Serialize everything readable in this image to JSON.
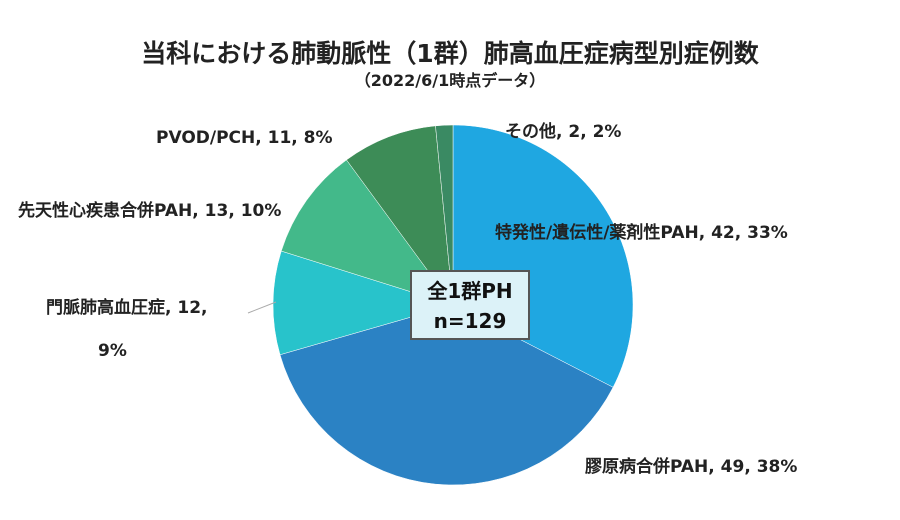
{
  "chart_data": {
    "type": "pie",
    "title": "当科における肺動脈性（1群）肺高血圧症病型別症例数",
    "subtitle": "（2022/6/1時点データ）",
    "total_label_line1": "全1群PH",
    "total_label_line2": "n=129",
    "slices": [
      {
        "name": "特発性/遺伝性/薬剤性PAH",
        "value": 42,
        "percent": "33%",
        "label_a": "特発性/遺伝性/薬剤性PAH, 42, 33%",
        "label_b": "",
        "color": "#1fa7e1"
      },
      {
        "name": "膠原病合併PAH",
        "value": 49,
        "percent": "38%",
        "label_a": "膠原病合併PAH, 49, 38%",
        "label_b": "",
        "color": "#2b82c4"
      },
      {
        "name": "門脈肺高血圧症",
        "value": 12,
        "percent": "9%",
        "label_a": "門脈肺高血圧症, 12,",
        "label_b": "9%",
        "color": "#28c3cb"
      },
      {
        "name": "先天性心疾患合併PAH",
        "value": 13,
        "percent": "10%",
        "label_a": "先天性心疾患合併PAH, 13, 10%",
        "label_b": "",
        "color": "#43b98a"
      },
      {
        "name": "PVOD/PCH",
        "value": 11,
        "percent": "8%",
        "label_a": "PVOD/PCH, 11, 8%",
        "label_b": "",
        "color": "#3d8c57"
      },
      {
        "name": "その他",
        "value": 2,
        "percent": "2%",
        "label_a": "その他, 2, 2%",
        "label_b": "",
        "color": "#3a8a63"
      }
    ]
  }
}
